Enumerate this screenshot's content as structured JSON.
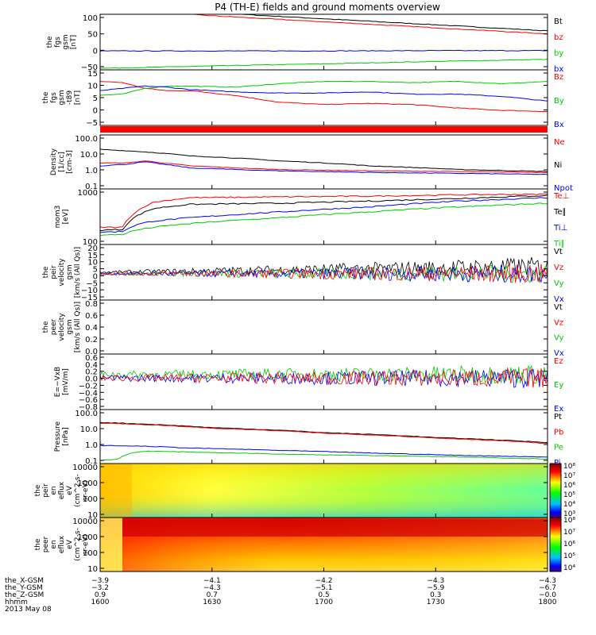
{
  "title": "P4 (TH-E) fields and ground moments overview",
  "colors": {
    "black": "#000000",
    "red": "#ff0000",
    "green": "#00cc00",
    "blue": "#0000ff"
  },
  "chart_data": [
    {
      "type": "line",
      "ylabel": [
        "the",
        "fgs",
        "gsm",
        "[nT]"
      ],
      "yticks": [
        "100",
        "50",
        "0",
        "−50"
      ],
      "ylim": [
        -75,
        110
      ],
      "legend": [
        {
          "name": "Bt",
          "color": "#000000"
        },
        {
          "name": "bz",
          "color": "#ff0000"
        },
        {
          "name": "by",
          "color": "#00cc00"
        },
        {
          "name": "bx",
          "color": "#0000ff"
        }
      ],
      "series": [
        {
          "name": "Bt",
          "color": "#000000",
          "x": [
            0,
            0.25,
            0.5,
            0.75,
            1
          ],
          "y": [
            140,
            115,
            95,
            75,
            55
          ]
        },
        {
          "name": "bz",
          "color": "#ff0000",
          "x": [
            0,
            0.25,
            0.5,
            0.75,
            1
          ],
          "y": [
            130,
            105,
            85,
            65,
            45
          ]
        },
        {
          "name": "by",
          "color": "#00cc00",
          "x": [
            0,
            0.25,
            0.5,
            0.75,
            1
          ],
          "y": [
            -70,
            -62,
            -55,
            -47,
            -40
          ]
        },
        {
          "name": "bx",
          "color": "#0000ff",
          "x": [
            0,
            0.25,
            0.5,
            0.75,
            1
          ],
          "y": [
            -12,
            -12,
            -12,
            -11,
            -11
          ]
        }
      ]
    },
    {
      "type": "line",
      "ylabel": [
        "the",
        "fgs",
        "gsm",
        "-t89",
        "[nT]"
      ],
      "yticks": [
        "15",
        "10",
        "5",
        "0",
        "−5"
      ],
      "ylim": [
        -7,
        17
      ],
      "legend": [
        {
          "name": "Bz",
          "color": "#ff0000"
        },
        {
          "name": "By",
          "color": "#00cc00"
        },
        {
          "name": "Bx",
          "color": "#0000ff"
        }
      ],
      "series": [
        {
          "name": "Bz",
          "color": "#ff0000",
          "x": [
            0,
            0.05,
            0.1,
            0.15,
            0.2,
            0.3,
            0.4,
            0.5,
            0.6,
            0.7,
            0.8,
            0.9,
            1
          ],
          "y": [
            12,
            11.5,
            9,
            8,
            8,
            6,
            3,
            2,
            2.5,
            2,
            0.5,
            -0.5,
            -1
          ]
        },
        {
          "name": "By",
          "color": "#00cc00",
          "x": [
            0,
            0.05,
            0.1,
            0.15,
            0.2,
            0.3,
            0.4,
            0.5,
            0.6,
            0.7,
            0.8,
            0.9,
            1
          ],
          "y": [
            6,
            6.5,
            9,
            10,
            10,
            9.5,
            11,
            12,
            12,
            11.5,
            12,
            11,
            12
          ]
        },
        {
          "name": "Bx",
          "color": "#0000ff",
          "x": [
            0,
            0.05,
            0.1,
            0.15,
            0.2,
            0.3,
            0.4,
            0.5,
            0.6,
            0.7,
            0.8,
            0.9,
            1
          ],
          "y": [
            8,
            9,
            10,
            9.5,
            8.5,
            7.5,
            7,
            7,
            7.5,
            6.5,
            6.5,
            5.5,
            3.5
          ]
        }
      ]
    },
    {
      "type": "line",
      "ylabel": [
        "Density",
        "[1/cc]",
        "[cm-3]"
      ],
      "yticks": [
        "100.0",
        "10.0",
        "1.0",
        "0.1"
      ],
      "ylim": [
        0.08,
        150
      ],
      "log": true,
      "legend": [
        {
          "name": "Ne",
          "color": "#ff0000"
        },
        {
          "name": "Ni",
          "color": "#000000"
        },
        {
          "name": "Npot",
          "color": "#0000ff"
        }
      ],
      "series": [
        {
          "name": "Ni",
          "color": "#000000",
          "x": [
            0,
            0.2,
            0.4,
            0.6,
            0.8,
            1
          ],
          "y": [
            20,
            8,
            4,
            2,
            1.2,
            0.9
          ]
        },
        {
          "name": "Ne",
          "color": "#ff0000",
          "x": [
            0,
            0.06,
            0.1,
            0.14,
            0.2,
            0.3,
            0.4,
            0.6,
            0.8,
            1
          ],
          "y": [
            3,
            3,
            4,
            3,
            2,
            1.5,
            1.2,
            1.0,
            0.9,
            0.8
          ]
        },
        {
          "name": "Npot",
          "color": "#0000ff",
          "x": [
            0,
            0.06,
            0.1,
            0.14,
            0.2,
            0.3,
            0.4,
            0.6,
            0.8,
            1
          ],
          "y": [
            2,
            2.5,
            3.5,
            2.5,
            1.5,
            1.2,
            1.0,
            0.8,
            0.7,
            0.6
          ]
        }
      ]
    },
    {
      "type": "line",
      "ylabel": [
        "mom3",
        "[eV]"
      ],
      "yticks": [
        "1000",
        "100"
      ],
      "ylim": [
        100,
        3500
      ],
      "log": true,
      "legend": [
        {
          "name": "Te⊥",
          "color": "#ff0000"
        },
        {
          "name": "Te∥",
          "color": "#000000"
        },
        {
          "name": "Ti⊥",
          "color": "#0000ff"
        },
        {
          "name": "Ti∥",
          "color": "#00cc00"
        }
      ],
      "series": [
        {
          "name": "Te⊥",
          "color": "#ff0000",
          "x": [
            0,
            0.05,
            0.08,
            0.12,
            0.2,
            0.4,
            0.6,
            0.8,
            1
          ],
          "y": [
            300,
            300,
            800,
            1500,
            2000,
            2100,
            2200,
            2400,
            2500
          ]
        },
        {
          "name": "Te∥",
          "color": "#000000",
          "x": [
            0,
            0.05,
            0.08,
            0.12,
            0.2,
            0.4,
            0.6,
            0.8,
            1
          ],
          "y": [
            250,
            260,
            600,
            1000,
            1300,
            1400,
            1600,
            1900,
            2300
          ]
        },
        {
          "name": "Ti⊥",
          "color": "#0000ff",
          "x": [
            0,
            0.05,
            0.08,
            0.12,
            0.2,
            0.4,
            0.6,
            0.8,
            1
          ],
          "y": [
            220,
            230,
            350,
            450,
            550,
            800,
            1100,
            1600,
            2000
          ]
        },
        {
          "name": "Ti∥",
          "color": "#00cc00",
          "x": [
            0,
            0.05,
            0.08,
            0.12,
            0.2,
            0.4,
            0.6,
            0.8,
            1
          ],
          "y": [
            180,
            190,
            250,
            300,
            380,
            550,
            800,
            1100,
            1400
          ]
        }
      ]
    },
    {
      "type": "line",
      "ylabel": [
        "the",
        "peir",
        "velocity",
        "gsm",
        "[km/s (All Qs)]"
      ],
      "yticks": [
        "20",
        "15",
        "10",
        "5",
        "0",
        "−5",
        "−10",
        "−15"
      ],
      "ylim": [
        -18,
        20
      ],
      "legend": [
        {
          "name": "Vt",
          "color": "#000000"
        },
        {
          "name": "Vz",
          "color": "#ff0000"
        },
        {
          "name": "Vy",
          "color": "#00cc00"
        },
        {
          "name": "Vx",
          "color": "#0000ff"
        }
      ]
    },
    {
      "type": "line",
      "ylabel": [
        "the",
        "peer",
        "velocity",
        "gsm",
        "[km/s (All Qs)]"
      ],
      "yticks": [
        "0.8",
        "0.6",
        "0.4",
        "0.2",
        "0.0"
      ],
      "ylim": [
        0,
        1
      ],
      "legend": [
        {
          "name": "Vt",
          "color": "#000000"
        },
        {
          "name": "Vz",
          "color": "#ff0000"
        },
        {
          "name": "Vy",
          "color": "#00cc00"
        },
        {
          "name": "Vx",
          "color": "#0000ff"
        }
      ]
    },
    {
      "type": "line",
      "ylabel": [
        "E=−VxB",
        "[mV/m]"
      ],
      "yticks": [
        "0.6",
        "0.4",
        "0.2",
        "0.0",
        "−0.2",
        "−0.4",
        "−0.6",
        "−0.8"
      ],
      "ylim": [
        -0.85,
        0.65
      ],
      "legend": [
        {
          "name": "Ez",
          "color": "#ff0000"
        },
        {
          "name": "Ey",
          "color": "#00cc00"
        },
        {
          "name": "Ex",
          "color": "#0000ff"
        }
      ]
    },
    {
      "type": "line",
      "ylabel": [
        "Pressure",
        "[nPa]"
      ],
      "yticks": [
        "100.0",
        "10.0",
        "1.0",
        "0.1"
      ],
      "ylim": [
        0.08,
        150
      ],
      "log": true,
      "legend": [
        {
          "name": "Pt",
          "color": "#000000"
        },
        {
          "name": "Pb",
          "color": "#ff0000"
        },
        {
          "name": "Pe",
          "color": "#00cc00"
        },
        {
          "name": "Pi",
          "color": "#0000ff"
        }
      ],
      "series": [
        {
          "name": "Pt",
          "color": "#000000",
          "x": [
            0,
            0.25,
            0.5,
            0.75,
            1
          ],
          "y": [
            25,
            12,
            6,
            3,
            1.5
          ]
        },
        {
          "name": "Pb",
          "color": "#ff0000",
          "x": [
            0,
            0.25,
            0.5,
            0.75,
            1
          ],
          "y": [
            23,
            11,
            5.5,
            2.8,
            1.3
          ]
        },
        {
          "name": "Pi",
          "color": "#0000ff",
          "x": [
            0,
            0.1,
            0.2,
            0.4,
            0.6,
            0.8,
            1
          ],
          "y": [
            1,
            0.9,
            0.7,
            0.5,
            0.35,
            0.25,
            0.2
          ]
        },
        {
          "name": "Pe",
          "color": "#00cc00",
          "x": [
            0,
            0.04,
            0.07,
            0.1,
            0.2,
            0.4,
            0.6,
            0.8,
            1
          ],
          "y": [
            0.12,
            0.15,
            0.35,
            0.45,
            0.4,
            0.3,
            0.25,
            0.2,
            0.15
          ]
        }
      ]
    },
    {
      "type": "heatmap",
      "ylabel": [
        "the",
        "peir",
        "en",
        "eflux",
        "eV",
        "(cm^2-s-",
        "sr-eV)"
      ],
      "yticks": [
        "10000",
        "1000",
        "100",
        "10"
      ],
      "colorbar": [
        "10⁸",
        "10⁷",
        "10⁶",
        "10⁵",
        "10⁴",
        "10³"
      ]
    },
    {
      "type": "heatmap",
      "ylabel": [
        "the",
        "peer",
        "en",
        "eflux",
        "eV",
        "(cm^2-s-",
        "sr-eV)"
      ],
      "yticks": [
        "10000",
        "1000",
        "100",
        "10"
      ],
      "colorbar": [
        "10⁸",
        "10⁷",
        "10⁶",
        "10⁵",
        "10⁴"
      ]
    }
  ],
  "xaxis": {
    "rows": [
      {
        "label": "the_X-GSM",
        "values": [
          "−3.9",
          "−4.1",
          "−4.2",
          "−4.3",
          "−4.3"
        ]
      },
      {
        "label": "the_Y-GSM",
        "values": [
          "−3.2",
          "−4.3",
          "−5.1",
          "−5.9",
          "−6.7"
        ]
      },
      {
        "label": "the_Z-GSM",
        "values": [
          "0.9",
          "0.7",
          "0.5",
          "0.3",
          "−0.0"
        ]
      },
      {
        "label": "hhmm",
        "values": [
          "1600",
          "1630",
          "1700",
          "1730",
          "1800"
        ]
      }
    ],
    "date": "2013 May 08"
  }
}
